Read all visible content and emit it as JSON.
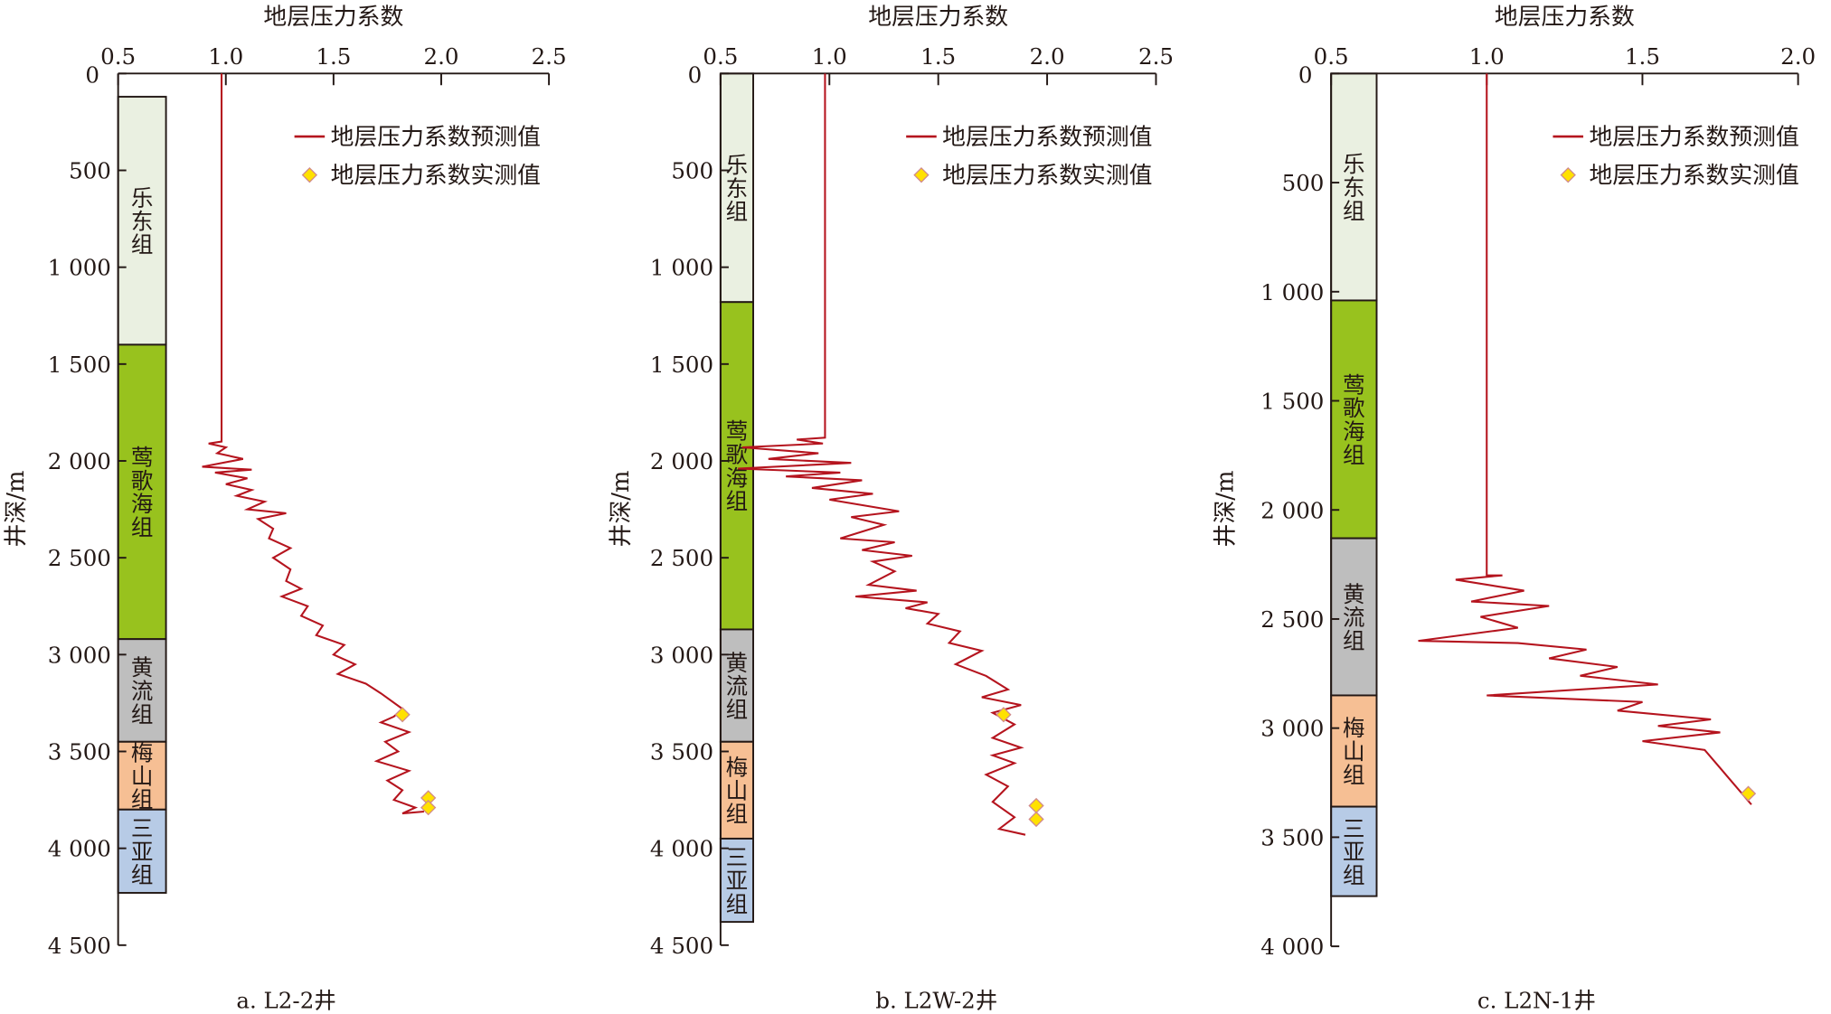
{
  "colors": {
    "predicted": "#b5141e",
    "measured_fill": "#ffe100",
    "measured_stroke": "#d08a8a",
    "axis": "#231815"
  },
  "chart_data": [
    {
      "type": "line",
      "caption": "a. L2-2井",
      "title": "地层压力系数",
      "xlabel": "地层压力系数",
      "ylabel": "井深/m",
      "xlim": [
        0.5,
        2.5
      ],
      "ylim": [
        0,
        4500
      ],
      "xticks": [
        "0.5",
        "1.0",
        "1.5",
        "2.0",
        "2.5"
      ],
      "xtick_values": [
        0.5,
        1.0,
        1.5,
        2.0,
        2.5
      ],
      "yticks": [
        "0",
        "500",
        "1 000",
        "1 500",
        "2 000",
        "2 500",
        "3 000",
        "3 500",
        "4 000",
        "4 500"
      ],
      "ytick_values": [
        0,
        500,
        1000,
        1500,
        2000,
        2500,
        3000,
        3500,
        4000,
        4500
      ],
      "legend": {
        "predicted": "地层压力系数预测值",
        "measured": "地层压力系数实测值",
        "placement": "top-right"
      },
      "formations": [
        {
          "name": "乐东组",
          "top": 120,
          "bottom": 1400,
          "color": "#eaf0e1"
        },
        {
          "name": "莺歌海组",
          "top": 1400,
          "bottom": 2920,
          "color": "#98c21e"
        },
        {
          "name": "黄流组",
          "top": 2920,
          "bottom": 3450,
          "color": "#bebebe"
        },
        {
          "name": "梅山组",
          "top": 3450,
          "bottom": 3800,
          "color": "#f6bf94"
        },
        {
          "name": "三亚组",
          "top": 3800,
          "bottom": 4230,
          "color": "#b7cbe6"
        }
      ],
      "series": [
        {
          "name": "地层压力系数预测值",
          "points": [
            [
              0.98,
              0
            ],
            [
              0.98,
              1900
            ],
            [
              0.92,
              1910
            ],
            [
              1.0,
              1930
            ],
            [
              0.96,
              1960
            ],
            [
              1.08,
              1990
            ],
            [
              0.89,
              2030
            ],
            [
              1.12,
              2045
            ],
            [
              0.95,
              2060
            ],
            [
              1.1,
              2090
            ],
            [
              1.0,
              2120
            ],
            [
              1.12,
              2150
            ],
            [
              1.05,
              2180
            ],
            [
              1.18,
              2210
            ],
            [
              1.1,
              2250
            ],
            [
              1.28,
              2270
            ],
            [
              1.15,
              2300
            ],
            [
              1.22,
              2350
            ],
            [
              1.2,
              2400
            ],
            [
              1.3,
              2450
            ],
            [
              1.22,
              2500
            ],
            [
              1.3,
              2560
            ],
            [
              1.28,
              2620
            ],
            [
              1.35,
              2660
            ],
            [
              1.26,
              2700
            ],
            [
              1.38,
              2750
            ],
            [
              1.35,
              2800
            ],
            [
              1.45,
              2850
            ],
            [
              1.42,
              2900
            ],
            [
              1.55,
              2950
            ],
            [
              1.5,
              3000
            ],
            [
              1.6,
              3050
            ],
            [
              1.52,
              3100
            ],
            [
              1.65,
              3150
            ],
            [
              1.72,
              3200
            ],
            [
              1.82,
              3280
            ],
            [
              1.78,
              3320
            ],
            [
              1.72,
              3350
            ],
            [
              1.85,
              3400
            ],
            [
              1.74,
              3450
            ],
            [
              1.8,
              3500
            ],
            [
              1.7,
              3550
            ],
            [
              1.85,
              3600
            ],
            [
              1.75,
              3650
            ],
            [
              1.82,
              3700
            ],
            [
              1.78,
              3750
            ],
            [
              1.88,
              3790
            ],
            [
              1.82,
              3820
            ],
            [
              1.92,
              3810
            ]
          ]
        },
        {
          "name": "地层压力系数实测值",
          "points": [
            [
              1.82,
              3310
            ],
            [
              1.94,
              3740
            ],
            [
              1.94,
              3790
            ]
          ]
        }
      ]
    },
    {
      "type": "line",
      "caption": "b. L2W-2井",
      "title": "地层压力系数",
      "xlabel": "地层压力系数",
      "ylabel": "井深/m",
      "xlim": [
        0.5,
        2.5
      ],
      "ylim": [
        0,
        4500
      ],
      "xticks": [
        "0.5",
        "1.0",
        "1.5",
        "2.0",
        "2.5"
      ],
      "xtick_values": [
        0.5,
        1.0,
        1.5,
        2.0,
        2.5
      ],
      "yticks": [
        "0",
        "500",
        "1 000",
        "1 500",
        "2 000",
        "2 500",
        "3 000",
        "3 500",
        "4 000",
        "4 500"
      ],
      "ytick_values": [
        0,
        500,
        1000,
        1500,
        2000,
        2500,
        3000,
        3500,
        4000,
        4500
      ],
      "legend": {
        "predicted": "地层压力系数预测值",
        "measured": "地层压力系数实测值",
        "placement": "top-right"
      },
      "formations": [
        {
          "name": "乐东组",
          "top": 0,
          "bottom": 1180,
          "color": "#eaf0e1"
        },
        {
          "name": "莺歌海组",
          "top": 1180,
          "bottom": 2870,
          "color": "#98c21e"
        },
        {
          "name": "黄流组",
          "top": 2870,
          "bottom": 3450,
          "color": "#bebebe"
        },
        {
          "name": "梅山组",
          "top": 3450,
          "bottom": 3950,
          "color": "#f6bf94"
        },
        {
          "name": "三亚组",
          "top": 3950,
          "bottom": 4380,
          "color": "#b7cbe6"
        }
      ],
      "series": [
        {
          "name": "地层压力系数预测值",
          "points": [
            [
              0.98,
              0
            ],
            [
              0.98,
              1880
            ],
            [
              0.85,
              1890
            ],
            [
              0.97,
              1910
            ],
            [
              0.6,
              1930
            ],
            [
              0.95,
              1960
            ],
            [
              0.72,
              1990
            ],
            [
              1.1,
              2010
            ],
            [
              0.58,
              2040
            ],
            [
              1.05,
              2060
            ],
            [
              0.8,
              2080
            ],
            [
              1.15,
              2100
            ],
            [
              0.92,
              2140
            ],
            [
              1.2,
              2170
            ],
            [
              1.0,
              2200
            ],
            [
              1.32,
              2260
            ],
            [
              1.1,
              2290
            ],
            [
              1.25,
              2330
            ],
            [
              1.05,
              2400
            ],
            [
              1.3,
              2420
            ],
            [
              1.15,
              2460
            ],
            [
              1.38,
              2490
            ],
            [
              1.2,
              2520
            ],
            [
              1.3,
              2570
            ],
            [
              1.18,
              2640
            ],
            [
              1.4,
              2670
            ],
            [
              1.12,
              2700
            ],
            [
              1.45,
              2730
            ],
            [
              1.35,
              2760
            ],
            [
              1.5,
              2790
            ],
            [
              1.45,
              2840
            ],
            [
              1.6,
              2880
            ],
            [
              1.55,
              2940
            ],
            [
              1.7,
              2980
            ],
            [
              1.58,
              3050
            ],
            [
              1.72,
              3110
            ],
            [
              1.82,
              3180
            ],
            [
              1.7,
              3220
            ],
            [
              1.88,
              3260
            ],
            [
              1.75,
              3300
            ],
            [
              1.85,
              3360
            ],
            [
              1.75,
              3430
            ],
            [
              1.88,
              3480
            ],
            [
              1.75,
              3520
            ],
            [
              1.85,
              3560
            ],
            [
              1.72,
              3620
            ],
            [
              1.82,
              3680
            ],
            [
              1.75,
              3760
            ],
            [
              1.85,
              3840
            ],
            [
              1.78,
              3900
            ],
            [
              1.9,
              3930
            ]
          ]
        },
        {
          "name": "地层压力系数实测值",
          "points": [
            [
              1.8,
              3310
            ],
            [
              1.95,
              3780
            ],
            [
              1.95,
              3850
            ]
          ]
        }
      ]
    },
    {
      "type": "line",
      "caption": "c. L2N-1井",
      "title": "地层压力系数",
      "xlabel": "地层压力系数",
      "ylabel": "井深/m",
      "xlim": [
        0.5,
        2.0
      ],
      "ylim": [
        0,
        4000
      ],
      "xticks": [
        "0.5",
        "1.0",
        "1.5",
        "2.0"
      ],
      "xtick_values": [
        0.5,
        1.0,
        1.5,
        2.0
      ],
      "yticks": [
        "0",
        "500",
        "1 000",
        "1 500",
        "2 000",
        "2 500",
        "3 000",
        "3 500",
        "4 000"
      ],
      "ytick_values": [
        0,
        500,
        1000,
        1500,
        2000,
        2500,
        3000,
        3500,
        4000
      ],
      "legend": {
        "predicted": "地层压力系数预测值",
        "measured": "地层压力系数实测值",
        "placement": "top-right"
      },
      "formations": [
        {
          "name": "乐东组",
          "top": 0,
          "bottom": 1040,
          "color": "#eaf0e1"
        },
        {
          "name": "莺歌海组",
          "top": 1040,
          "bottom": 2130,
          "color": "#98c21e"
        },
        {
          "name": "黄流组",
          "top": 2130,
          "bottom": 2850,
          "color": "#bebebe"
        },
        {
          "name": "梅山组",
          "top": 2850,
          "bottom": 3360,
          "color": "#f6bf94"
        },
        {
          "name": "三亚组",
          "top": 3360,
          "bottom": 3770,
          "color": "#b7cbe6"
        }
      ],
      "series": [
        {
          "name": "地层压力系数预测值",
          "points": [
            [
              1.0,
              0
            ],
            [
              1.0,
              1200
            ],
            [
              1.0,
              2300
            ],
            [
              1.05,
              2300
            ],
            [
              0.9,
              2320
            ],
            [
              1.12,
              2370
            ],
            [
              0.95,
              2420
            ],
            [
              1.2,
              2440
            ],
            [
              0.98,
              2490
            ],
            [
              1.1,
              2540
            ],
            [
              0.78,
              2600
            ],
            [
              1.1,
              2610
            ],
            [
              1.32,
              2640
            ],
            [
              1.2,
              2680
            ],
            [
              1.42,
              2720
            ],
            [
              1.3,
              2760
            ],
            [
              1.55,
              2800
            ],
            [
              1.0,
              2850
            ],
            [
              1.5,
              2880
            ],
            [
              1.42,
              2920
            ],
            [
              1.72,
              2960
            ],
            [
              1.55,
              2990
            ],
            [
              1.75,
              3020
            ],
            [
              1.5,
              3060
            ],
            [
              1.7,
              3100
            ],
            [
              1.85,
              3350
            ]
          ]
        },
        {
          "name": "地层压力系数实测值",
          "points": [
            [
              1.84,
              3300
            ]
          ]
        }
      ]
    }
  ]
}
